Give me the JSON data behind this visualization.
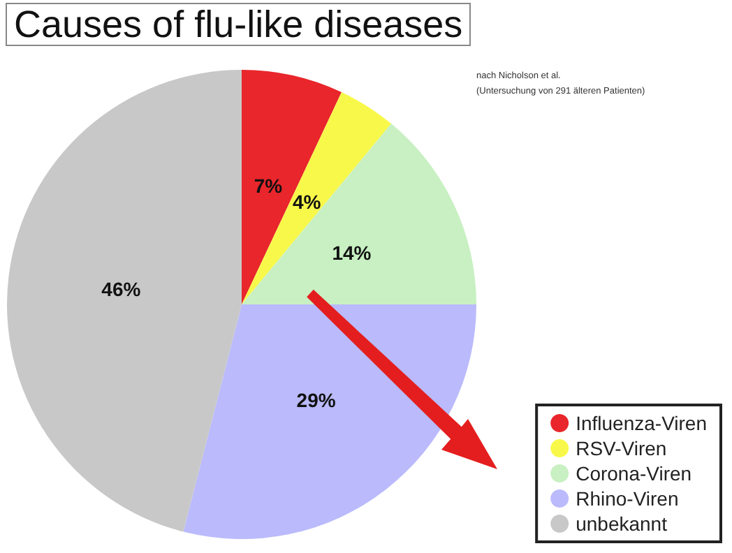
{
  "chart_data": {
    "type": "pie",
    "title": "Causes of flu-like diseases",
    "annotations": [
      "nach Nicholson et al.",
      "(Untersuchung von 291 älteren Patienten)"
    ],
    "categories": [
      "Influenza-Viren",
      "RSV-Viren",
      "Corona-Viren",
      "Rhino-Viren",
      "unbekannt"
    ],
    "values": [
      7,
      4,
      14,
      29,
      46
    ],
    "colors": [
      "#e8262b",
      "#f8f84a",
      "#c8f0c2",
      "#babafc",
      "#c8c8c8"
    ],
    "value_labels": [
      "7%",
      "4%",
      "14%",
      "29%",
      "46%"
    ],
    "legend": "bottom right"
  }
}
